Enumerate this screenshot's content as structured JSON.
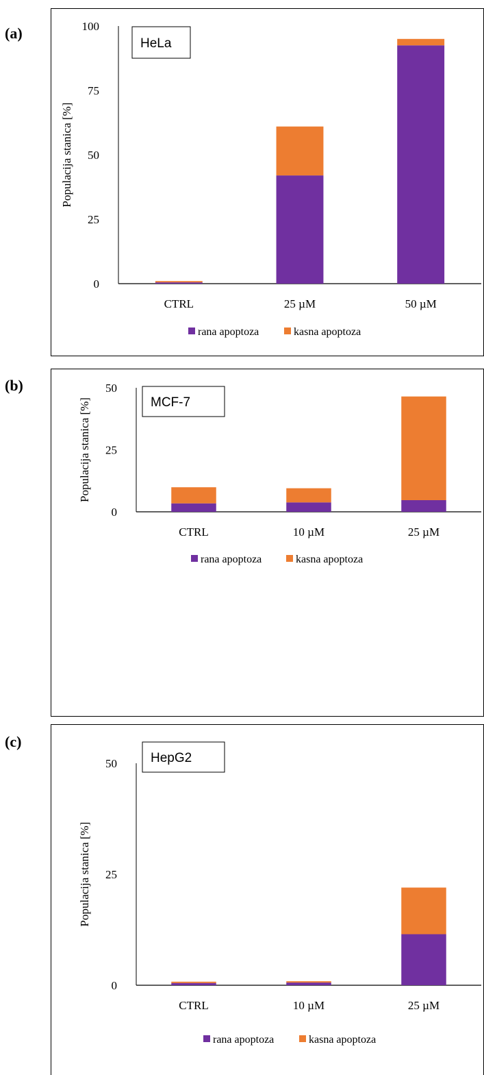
{
  "panels": [
    {
      "label": "(a)"
    },
    {
      "label": "(b)"
    },
    {
      "label": "(c)"
    }
  ],
  "colors": {
    "rana": "#7030a0",
    "kasna": "#ed7d31",
    "axis": "#000000"
  },
  "chart_data": [
    {
      "type": "bar",
      "stacked": true,
      "title": "HeLa",
      "ylabel": "Populacija stanica [%]",
      "categories": [
        "CTRL",
        "25 µM",
        "50 µM"
      ],
      "series": [
        {
          "name": "rana apoptoza",
          "values": [
            0.5,
            42,
            92.5
          ]
        },
        {
          "name": "kasna apoptoza",
          "values": [
            0.5,
            19,
            2.5
          ]
        }
      ],
      "ylim": [
        0,
        100
      ],
      "yticks": [
        0,
        25,
        50,
        75,
        100
      ],
      "legend": "bottom",
      "grid": false
    },
    {
      "type": "bar",
      "stacked": true,
      "title": "MCF-7",
      "ylabel": "Populacija stanica [%]",
      "categories": [
        "CTRL",
        "10 µM",
        "25 µM"
      ],
      "series": [
        {
          "name": "rana apoptoza",
          "values": [
            3.4,
            3.8,
            4.7
          ]
        },
        {
          "name": "kasna apoptoza",
          "values": [
            6.5,
            5.7,
            41.8
          ]
        }
      ],
      "ylim": [
        0,
        50
      ],
      "yticks": [
        0,
        25,
        50
      ],
      "legend": "bottom",
      "grid": false
    },
    {
      "type": "bar",
      "stacked": true,
      "title": "HepG2",
      "ylabel": "Populacija stanica [%]",
      "categories": [
        "CTRL",
        "10 µM",
        "25 µM"
      ],
      "series": [
        {
          "name": "rana apoptoza",
          "values": [
            0.5,
            0.6,
            11.5
          ]
        },
        {
          "name": "kasna apoptoza",
          "values": [
            0.3,
            0.3,
            10.5
          ]
        }
      ],
      "ylim": [
        0,
        50
      ],
      "yticks": [
        0,
        25,
        50
      ],
      "legend": "bottom",
      "grid": false
    }
  ]
}
